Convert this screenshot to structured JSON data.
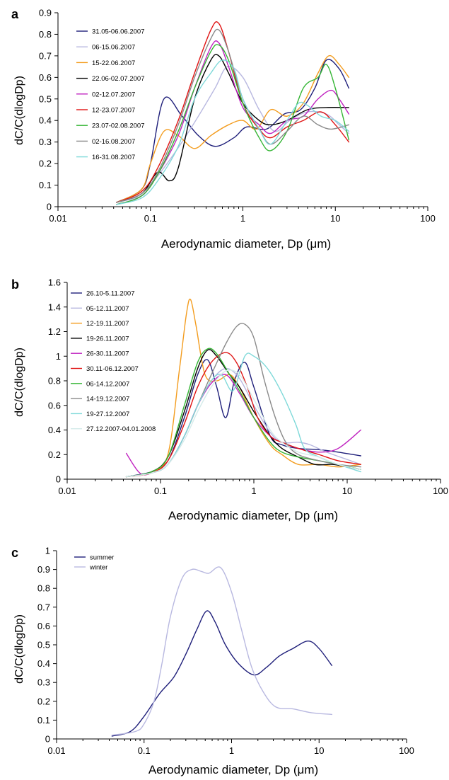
{
  "chart_data": [
    {
      "panel_label": "a",
      "type": "line",
      "xscale": "log",
      "xlim": [
        0.01,
        100
      ],
      "ylim": [
        0,
        0.9
      ],
      "xticks": [
        "0.01",
        "0.1",
        "1",
        "10",
        "100"
      ],
      "yticks": [
        "0",
        "0.1",
        "0.2",
        "0.3",
        "0.4",
        "0.5",
        "0.6",
        "0.7",
        "0.8",
        "0.9"
      ],
      "xlabel": "Aerodynamic diameter, Dp (μm)",
      "ylabel": "dC/C(dlogDp)",
      "legend_position": "top-left",
      "series": [
        {
          "name": "31.05-06.06.2007",
          "color": "#1f1f7a",
          "x": [
            0.043,
            0.08,
            0.1,
            0.14,
            0.22,
            0.33,
            0.5,
            0.8,
            1.1,
            1.8,
            2.8,
            4.2,
            6.0,
            8.0,
            11.0,
            14.0
          ],
          "y": [
            0.02,
            0.08,
            0.2,
            0.5,
            0.42,
            0.33,
            0.28,
            0.32,
            0.37,
            0.36,
            0.43,
            0.45,
            0.55,
            0.68,
            0.64,
            0.55
          ]
        },
        {
          "name": "06-15.06.2007",
          "color": "#b8b8e0",
          "x": [
            0.043,
            0.08,
            0.1,
            0.14,
            0.22,
            0.33,
            0.5,
            0.68,
            1.0,
            1.5,
            2.2,
            3.2,
            5.0,
            8.0,
            11.0,
            14.0
          ],
          "y": [
            0.02,
            0.05,
            0.1,
            0.18,
            0.3,
            0.42,
            0.55,
            0.65,
            0.6,
            0.45,
            0.35,
            0.4,
            0.44,
            0.43,
            0.38,
            0.34
          ]
        },
        {
          "name": "15-22.06.2007",
          "color": "#f39c1e",
          "x": [
            0.043,
            0.08,
            0.1,
            0.14,
            0.2,
            0.3,
            0.45,
            0.7,
            1.0,
            1.4,
            2.0,
            3.0,
            4.5,
            6.5,
            8.5,
            11.0,
            14.0
          ],
          "y": [
            0.02,
            0.08,
            0.2,
            0.35,
            0.33,
            0.27,
            0.33,
            0.38,
            0.4,
            0.36,
            0.45,
            0.42,
            0.48,
            0.62,
            0.7,
            0.66,
            0.6
          ]
        },
        {
          "name": "22.06-02.07.2007",
          "color": "#000000",
          "x": [
            0.043,
            0.08,
            0.12,
            0.16,
            0.2,
            0.3,
            0.45,
            0.55,
            0.7,
            1.0,
            1.5,
            2.0,
            3.0,
            5.0,
            8.0,
            14.0
          ],
          "y": [
            0.02,
            0.06,
            0.16,
            0.12,
            0.18,
            0.5,
            0.68,
            0.7,
            0.62,
            0.48,
            0.4,
            0.38,
            0.4,
            0.45,
            0.46,
            0.46
          ]
        },
        {
          "name": "02-12.07.2007",
          "color": "#c023c0",
          "x": [
            0.043,
            0.08,
            0.12,
            0.2,
            0.3,
            0.45,
            0.55,
            0.7,
            1.0,
            1.5,
            2.0,
            3.0,
            4.5,
            6.5,
            9.0,
            11.0,
            14.0
          ],
          "y": [
            0.01,
            0.05,
            0.15,
            0.33,
            0.55,
            0.74,
            0.76,
            0.65,
            0.46,
            0.38,
            0.34,
            0.4,
            0.42,
            0.5,
            0.54,
            0.5,
            0.43
          ]
        },
        {
          "name": "12-23.07.2007",
          "color": "#e01414",
          "x": [
            0.043,
            0.08,
            0.12,
            0.2,
            0.3,
            0.45,
            0.55,
            0.7,
            1.0,
            1.5,
            2.0,
            3.0,
            4.5,
            7.0,
            10.0,
            14.0
          ],
          "y": [
            0.02,
            0.07,
            0.18,
            0.4,
            0.62,
            0.82,
            0.85,
            0.72,
            0.48,
            0.36,
            0.32,
            0.37,
            0.4,
            0.44,
            0.38,
            0.3
          ]
        },
        {
          "name": "23.07-02.08.2007",
          "color": "#34b534",
          "x": [
            0.043,
            0.08,
            0.12,
            0.2,
            0.3,
            0.45,
            0.55,
            0.7,
            1.0,
            1.5,
            2.0,
            3.0,
            4.5,
            6.5,
            8.0,
            10.0,
            14.0
          ],
          "y": [
            0.01,
            0.05,
            0.15,
            0.35,
            0.55,
            0.72,
            0.75,
            0.68,
            0.48,
            0.32,
            0.26,
            0.35,
            0.55,
            0.6,
            0.66,
            0.55,
            0.31
          ]
        },
        {
          "name": "02-16.08.2007",
          "color": "#8a8a8a",
          "x": [
            0.043,
            0.08,
            0.12,
            0.2,
            0.3,
            0.45,
            0.55,
            0.7,
            1.0,
            1.5,
            2.0,
            3.0,
            4.5,
            6.5,
            9.0,
            14.0
          ],
          "y": [
            0.02,
            0.06,
            0.16,
            0.38,
            0.6,
            0.78,
            0.82,
            0.72,
            0.5,
            0.36,
            0.29,
            0.35,
            0.42,
            0.38,
            0.36,
            0.38
          ]
        },
        {
          "name": "16-31.08.2007",
          "color": "#7fd9d9",
          "x": [
            0.043,
            0.08,
            0.12,
            0.2,
            0.3,
            0.45,
            0.6,
            0.8,
            1.0,
            1.5,
            2.0,
            3.0,
            4.0,
            5.0,
            7.0,
            10.0,
            14.0
          ],
          "y": [
            0.01,
            0.04,
            0.12,
            0.28,
            0.5,
            0.62,
            0.68,
            0.64,
            0.5,
            0.36,
            0.29,
            0.4,
            0.48,
            0.47,
            0.42,
            0.4,
            0.35
          ]
        }
      ]
    },
    {
      "panel_label": "b",
      "type": "line",
      "xscale": "log",
      "xlim": [
        0.01,
        100
      ],
      "ylim": [
        0,
        1.6
      ],
      "xticks": [
        "0.01",
        "0.1",
        "1",
        "10",
        "100"
      ],
      "yticks": [
        "0",
        "0.2",
        "0.4",
        "0.6",
        "0.8",
        "1",
        "1.2",
        "1.4",
        "1.6"
      ],
      "xlabel": "Aerodynamic diameter, Dp (μm)",
      "ylabel": "dC/C(dlogDp)",
      "legend_position": "top-left",
      "series": [
        {
          "name": "26.10-5.11.2007",
          "color": "#1f1f7a",
          "x": [
            0.043,
            0.08,
            0.12,
            0.18,
            0.25,
            0.32,
            0.4,
            0.5,
            0.62,
            0.8,
            1.0,
            1.5,
            2.0,
            3.0,
            5.0,
            8.0,
            14.0
          ],
          "y": [
            0.02,
            0.06,
            0.15,
            0.5,
            0.85,
            0.97,
            0.75,
            0.5,
            0.8,
            0.95,
            0.75,
            0.35,
            0.28,
            0.25,
            0.24,
            0.22,
            0.19
          ]
        },
        {
          "name": "05-12.11.2007",
          "color": "#b8b8e0",
          "x": [
            0.043,
            0.08,
            0.12,
            0.18,
            0.25,
            0.35,
            0.5,
            0.7,
            1.0,
            1.5,
            2.0,
            3.0,
            4.0,
            6.0,
            10.0,
            14.0
          ],
          "y": [
            0.02,
            0.05,
            0.12,
            0.35,
            0.6,
            0.8,
            0.9,
            0.82,
            0.6,
            0.38,
            0.3,
            0.3,
            0.28,
            0.22,
            0.16,
            0.12
          ]
        },
        {
          "name": "12-19.11.2007",
          "color": "#f39c1e",
          "x": [
            0.043,
            0.08,
            0.12,
            0.16,
            0.19,
            0.21,
            0.24,
            0.3,
            0.4,
            0.55,
            0.7,
            1.0,
            1.5,
            2.0,
            3.0,
            5.0,
            8.0,
            14.0
          ],
          "y": [
            0.02,
            0.06,
            0.2,
            0.9,
            1.35,
            1.46,
            1.25,
            0.85,
            0.8,
            0.85,
            0.75,
            0.5,
            0.28,
            0.2,
            0.12,
            0.12,
            0.1,
            0.12
          ]
        },
        {
          "name": "19-26.11.2007",
          "color": "#000000",
          "x": [
            0.043,
            0.08,
            0.12,
            0.18,
            0.25,
            0.32,
            0.4,
            0.55,
            0.7,
            1.0,
            1.5,
            2.0,
            3.0,
            4.5,
            7.0,
            10.0,
            14.0
          ],
          "y": [
            0.02,
            0.06,
            0.18,
            0.55,
            0.9,
            1.05,
            1.0,
            0.85,
            0.75,
            0.55,
            0.35,
            0.25,
            0.18,
            0.12,
            0.12,
            0.1,
            0.08
          ]
        },
        {
          "name": "26-30.11.2007",
          "color": "#c023c0",
          "x": [
            0.043,
            0.06,
            0.08,
            0.12,
            0.18,
            0.25,
            0.35,
            0.5,
            0.7,
            1.0,
            1.5,
            2.0,
            3.0,
            5.0,
            8.0,
            14.0
          ],
          "y": [
            0.21,
            0.05,
            0.05,
            0.12,
            0.35,
            0.6,
            0.78,
            0.85,
            0.7,
            0.5,
            0.35,
            0.3,
            0.25,
            0.22,
            0.25,
            0.4
          ]
        },
        {
          "name": "30.11-06.12.2007",
          "color": "#e01414",
          "x": [
            0.043,
            0.08,
            0.12,
            0.18,
            0.25,
            0.35,
            0.5,
            0.65,
            0.85,
            1.1,
            1.5,
            2.0,
            3.0,
            5.0,
            8.0,
            14.0
          ],
          "y": [
            0.02,
            0.05,
            0.15,
            0.45,
            0.75,
            0.95,
            1.03,
            0.95,
            0.75,
            0.5,
            0.35,
            0.3,
            0.25,
            0.2,
            0.15,
            0.12
          ]
        },
        {
          "name": "06-14.12.2007",
          "color": "#34b534",
          "x": [
            0.043,
            0.08,
            0.12,
            0.18,
            0.25,
            0.32,
            0.4,
            0.55,
            0.7,
            1.0,
            1.5,
            2.0,
            3.0,
            5.0,
            8.0,
            14.0
          ],
          "y": [
            0.02,
            0.06,
            0.18,
            0.6,
            0.95,
            1.06,
            1.02,
            0.85,
            0.72,
            0.5,
            0.3,
            0.22,
            0.18,
            0.15,
            0.12,
            0.08
          ]
        },
        {
          "name": "14-19.12.2007",
          "color": "#8a8a8a",
          "x": [
            0.043,
            0.08,
            0.12,
            0.18,
            0.25,
            0.35,
            0.5,
            0.65,
            0.8,
            1.0,
            1.3,
            1.7,
            2.2,
            3.0,
            5.0,
            8.0,
            14.0
          ],
          "y": [
            0.02,
            0.05,
            0.12,
            0.35,
            0.6,
            0.85,
            1.1,
            1.24,
            1.26,
            1.15,
            0.8,
            0.5,
            0.3,
            0.2,
            0.15,
            0.12,
            0.1
          ]
        },
        {
          "name": "19-27.12.2007",
          "color": "#7fd9d9",
          "x": [
            0.043,
            0.08,
            0.12,
            0.18,
            0.25,
            0.35,
            0.45,
            0.6,
            0.8,
            1.0,
            1.4,
            2.0,
            2.8,
            3.5,
            5.0,
            8.0,
            14.0
          ],
          "y": [
            0.02,
            0.05,
            0.12,
            0.35,
            0.6,
            0.8,
            0.85,
            0.72,
            1.0,
            1.0,
            0.9,
            0.7,
            0.45,
            0.25,
            0.18,
            0.12,
            0.06
          ]
        },
        {
          "name": "27.12.2007-04.01.2008",
          "color": "#d5ebea",
          "x": [
            0.043,
            0.08,
            0.12,
            0.18,
            0.25,
            0.35,
            0.5,
            0.7,
            1.0,
            1.5,
            2.0,
            3.0,
            5.0,
            8.0,
            14.0
          ],
          "y": [
            0.02,
            0.05,
            0.12,
            0.32,
            0.55,
            0.75,
            0.88,
            0.85,
            0.65,
            0.4,
            0.3,
            0.22,
            0.18,
            0.12,
            0.08
          ]
        }
      ]
    },
    {
      "panel_label": "c",
      "type": "line",
      "xscale": "log",
      "xlim": [
        0.01,
        100
      ],
      "ylim": [
        0,
        1
      ],
      "xticks": [
        "0.01",
        "0.1",
        "1",
        "10",
        "100"
      ],
      "yticks": [
        "0",
        "0.1",
        "0.2",
        "0.3",
        "0.4",
        "0.5",
        "0.6",
        "0.7",
        "0.8",
        "0.9",
        "1"
      ],
      "xlabel": "Aerodynamic diameter, Dp (μm)",
      "ylabel": "dC/C(dlogDp)",
      "legend_position": "top-left",
      "series": [
        {
          "name": "summer",
          "color": "#1f1f7a",
          "x": [
            0.043,
            0.07,
            0.1,
            0.15,
            0.22,
            0.3,
            0.4,
            0.52,
            0.65,
            0.85,
            1.2,
            1.8,
            2.5,
            3.5,
            5.0,
            7.5,
            10.0,
            14.0
          ],
          "y": [
            0.015,
            0.04,
            0.12,
            0.24,
            0.33,
            0.45,
            0.58,
            0.68,
            0.62,
            0.5,
            0.4,
            0.34,
            0.38,
            0.44,
            0.48,
            0.52,
            0.48,
            0.39
          ]
        },
        {
          "name": "winter",
          "color": "#b8b8e0",
          "x": [
            0.043,
            0.08,
            0.1,
            0.13,
            0.16,
            0.2,
            0.27,
            0.35,
            0.45,
            0.55,
            0.75,
            1.0,
            1.3,
            1.7,
            2.3,
            3.2,
            5.0,
            8.0,
            14.0
          ],
          "y": [
            0.02,
            0.04,
            0.08,
            0.2,
            0.4,
            0.65,
            0.85,
            0.9,
            0.89,
            0.88,
            0.91,
            0.78,
            0.58,
            0.38,
            0.25,
            0.17,
            0.16,
            0.14,
            0.13
          ]
        }
      ]
    }
  ]
}
